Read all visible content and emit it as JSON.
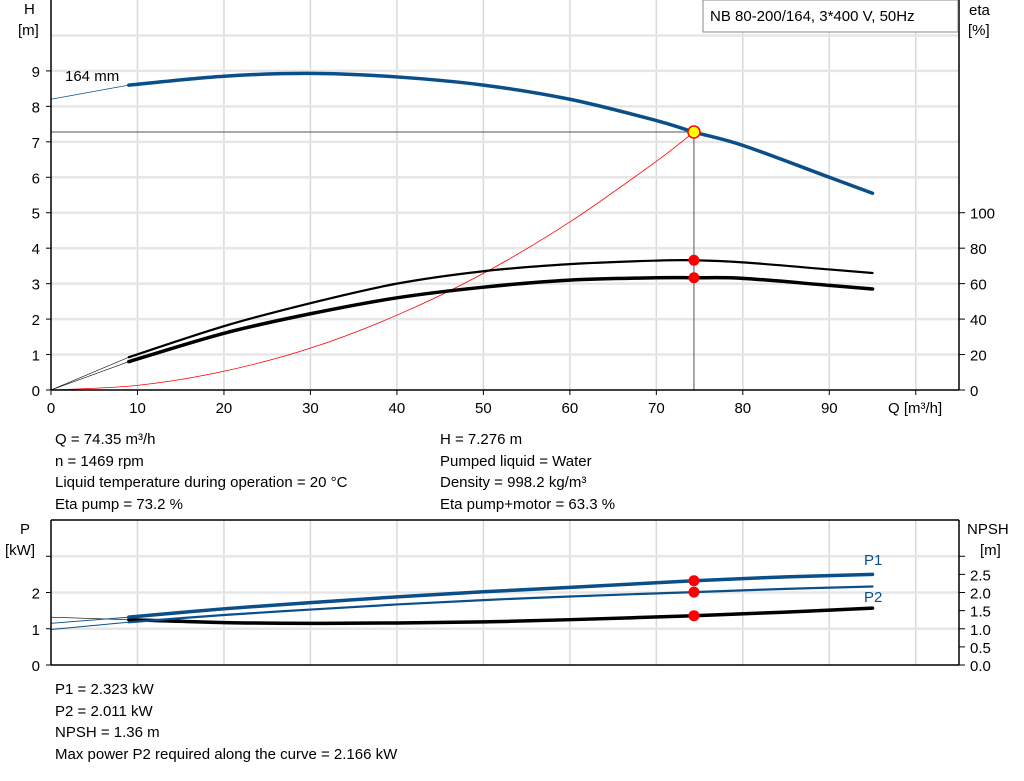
{
  "title": "NB 80-200/164, 3*400 V, 50Hz",
  "colors": {
    "head_curve": "#0b4f8a",
    "efficiency_curve": "#000000",
    "system_curve": "#ff0000",
    "operating_point": "#ff0000",
    "duty_point_fill": "#ffff00",
    "grid": "#d9d9d9"
  },
  "chart_data": [
    {
      "type": "line",
      "xlabel": "Q [m³/h]",
      "ylabel_left": [
        "H",
        "[m]"
      ],
      "ylabel_right": [
        "eta",
        "[%]"
      ],
      "xlim": [
        0,
        105
      ],
      "ylim_left": [
        0,
        11
      ],
      "ylim_right": [
        0,
        220
      ],
      "xticks": [
        0,
        10,
        20,
        30,
        40,
        50,
        60,
        70,
        80,
        90
      ],
      "yticks_left": [
        0,
        1,
        2,
        3,
        4,
        5,
        6,
        7,
        8,
        9
      ],
      "yticks_right": [
        0,
        20,
        40,
        60,
        80,
        100
      ],
      "grid": true,
      "curve_label": "164 mm",
      "series": [
        {
          "key": "head",
          "axis": "left",
          "x": [
            9,
            20,
            30,
            40,
            50,
            60,
            70,
            74.35,
            80,
            90,
            95
          ],
          "y": [
            8.6,
            8.85,
            8.93,
            8.83,
            8.6,
            8.2,
            7.6,
            7.276,
            6.9,
            6.0,
            5.55
          ],
          "extension": {
            "x": [
              0,
              9
            ],
            "y": [
              8.2,
              8.6
            ]
          }
        },
        {
          "key": "eta_pump",
          "axis": "right",
          "x": [
            9,
            20,
            30,
            40,
            50,
            60,
            70,
            74.35,
            80,
            90,
            95
          ],
          "y": [
            18.5,
            36,
            49,
            60,
            67,
            71,
            73,
            73.2,
            72,
            68,
            66
          ],
          "extension": {
            "x": [
              0,
              9
            ],
            "y": [
              0,
              18.5
            ]
          }
        },
        {
          "key": "eta_pump_motor",
          "axis": "right",
          "x": [
            9,
            20,
            30,
            40,
            50,
            60,
            70,
            74.35,
            80,
            90,
            95
          ],
          "y": [
            16,
            32,
            43,
            52,
            58,
            62,
            63.3,
            63.3,
            63,
            59,
            57
          ],
          "extension": {
            "x": [
              0,
              9
            ],
            "y": [
              0,
              16
            ]
          }
        },
        {
          "key": "system",
          "axis": "left",
          "x": [
            0,
            10,
            20,
            30,
            40,
            50,
            60,
            70,
            74.35
          ],
          "y": [
            0,
            0.13,
            0.53,
            1.18,
            2.11,
            3.29,
            4.74,
            6.45,
            7.276
          ]
        }
      ],
      "operating_point": {
        "Q": 74.35,
        "H": 7.276,
        "eta_pump": 73.2,
        "eta_pump_motor": 63.3
      }
    },
    {
      "type": "line",
      "ylabel_left": [
        "P",
        "[kW]"
      ],
      "ylabel_right": [
        "NPSH",
        "[m]"
      ],
      "xlim": [
        0,
        105
      ],
      "ylim_left": [
        0,
        4
      ],
      "ylim_right": [
        0,
        4
      ],
      "yticks_left": [
        0,
        1,
        2
      ],
      "yticks_right": [
        "0.0",
        "0.5",
        "1.0",
        "1.5",
        "2.0",
        "2.5"
      ],
      "grid": true,
      "series": [
        {
          "key": "P1",
          "name": "P1",
          "axis": "left",
          "x": [
            9,
            20,
            30,
            40,
            50,
            60,
            74.35,
            85,
            95
          ],
          "y": [
            1.32,
            1.55,
            1.72,
            1.88,
            2.02,
            2.14,
            2.323,
            2.43,
            2.5
          ],
          "extension": {
            "x": [
              0,
              9
            ],
            "y": [
              1.15,
              1.32
            ]
          }
        },
        {
          "key": "P2",
          "name": "P2",
          "axis": "left",
          "x": [
            9,
            20,
            30,
            40,
            50,
            60,
            74.35,
            85,
            95
          ],
          "y": [
            1.18,
            1.38,
            1.53,
            1.67,
            1.79,
            1.89,
            2.011,
            2.1,
            2.166
          ],
          "extension": {
            "x": [
              0,
              9
            ],
            "y": [
              0.98,
              1.18
            ]
          }
        },
        {
          "key": "NPSH",
          "axis": "right",
          "x": [
            9,
            20,
            30,
            40,
            50,
            60,
            74.35,
            85,
            95
          ],
          "y": [
            1.25,
            1.17,
            1.15,
            1.16,
            1.19,
            1.25,
            1.36,
            1.46,
            1.57
          ],
          "extension": {
            "x": [
              0,
              9
            ],
            "y": [
              1.32,
              1.25
            ]
          }
        }
      ],
      "operating_point": {
        "Q": 74.35,
        "P1": 2.323,
        "P2": 2.011,
        "NPSH": 1.36
      }
    }
  ],
  "info_top": {
    "left": [
      "Q = 74.35 m³/h",
      "n = 1469 rpm",
      "Liquid temperature during operation = 20 °C",
      "Eta pump = 73.2 %"
    ],
    "right": [
      "H = 7.276 m",
      "Pumped liquid = Water",
      "Density = 998.2 kg/m³",
      "Eta pump+motor = 63.3 %"
    ]
  },
  "info_bottom": [
    "P1 = 2.323 kW",
    "P2 = 2.011 kW",
    "NPSH = 1.36 m",
    "Max power P2 required along the curve = 2.166 kW"
  ]
}
